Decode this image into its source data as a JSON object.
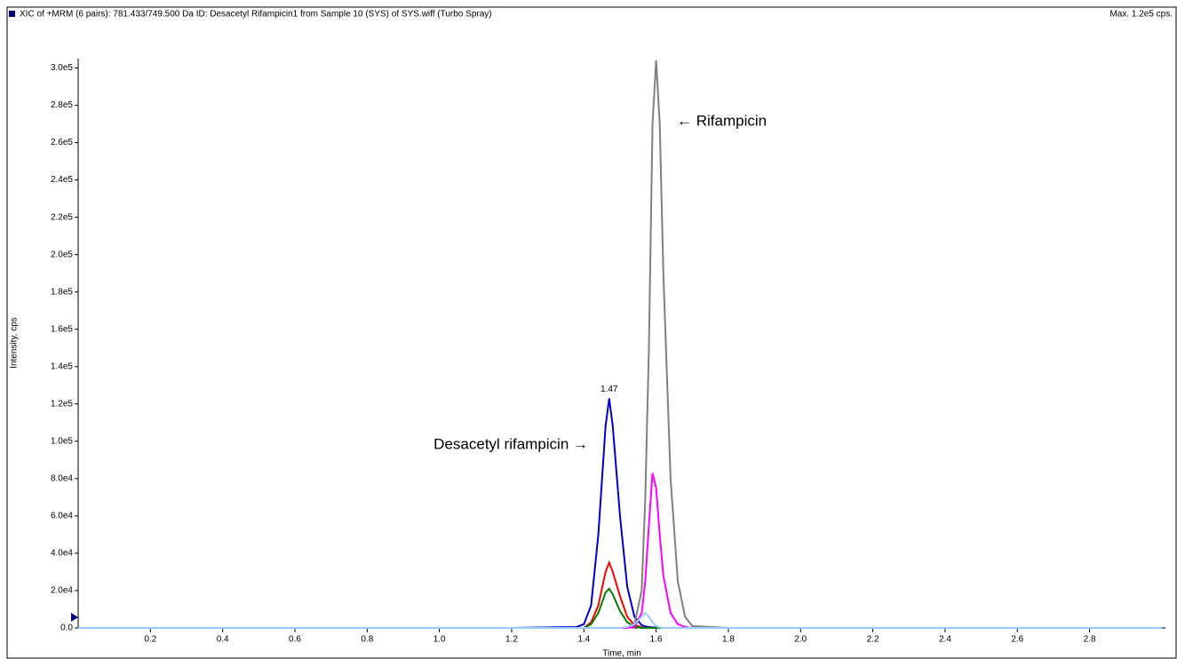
{
  "chart_data": {
    "type": "line",
    "title": "XIC of +MRM (6 pairs): 781.433/749.500 Da ID: Desacetyl Rifampicin1 from Sample 10 (SYS) of SYS.wiff (Turbo Spray)",
    "max_label": "Max. 1.2e5 cps.",
    "x_label": "Time, min",
    "y_label": "Intensity, cps",
    "peak_label": 1.47,
    "annotations": [
      "← Rifampicin",
      "Desacetyl rifampicin →"
    ],
    "x": [
      0,
      1.2,
      1.38,
      1.4,
      1.42,
      1.44,
      1.46,
      1.47,
      1.48,
      1.5,
      1.52,
      1.54,
      1.56,
      1.57,
      1.58,
      1.59,
      1.6,
      1.61,
      1.62,
      1.64,
      1.66,
      1.68,
      1.7,
      1.8,
      2.0,
      3.0
    ],
    "series": [
      {
        "color": "#0000cc",
        "values": [
          0,
          0,
          500,
          2000,
          12000,
          50000,
          108000,
          123000,
          108000,
          60000,
          22000,
          6000,
          1500,
          800,
          500,
          300,
          200,
          100,
          0,
          0,
          0,
          0,
          0,
          0,
          0,
          0
        ]
      },
      {
        "color": "#ff0000",
        "values": [
          0,
          0,
          0,
          0,
          3000,
          12000,
          30000,
          35000,
          30000,
          17000,
          6000,
          1500,
          300,
          0,
          0,
          0,
          0,
          0,
          0,
          0,
          0,
          0,
          0,
          0,
          0,
          0
        ]
      },
      {
        "color": "#008000",
        "values": [
          0,
          0,
          0,
          0,
          2000,
          8000,
          19000,
          21000,
          18000,
          9000,
          3000,
          800,
          0,
          0,
          0,
          0,
          0,
          0,
          0,
          0,
          0,
          0,
          0,
          0,
          0,
          0
        ]
      },
      {
        "color": "#808080",
        "values": [
          0,
          0,
          0,
          0,
          0,
          0,
          0,
          0,
          0,
          0,
          0,
          2000,
          20000,
          70000,
          150000,
          270000,
          304000,
          270000,
          190000,
          80000,
          25000,
          6000,
          1000,
          0,
          0,
          0
        ]
      },
      {
        "color": "#ff00ff",
        "values": [
          0,
          0,
          0,
          0,
          0,
          0,
          0,
          0,
          0,
          0,
          0,
          500,
          8000,
          25000,
          55000,
          83000,
          75000,
          50000,
          28000,
          8000,
          2000,
          500,
          0,
          0,
          0,
          0
        ]
      },
      {
        "color": "#99ccff",
        "values": [
          0,
          0,
          0,
          0,
          0,
          0,
          0,
          0,
          0,
          0,
          500,
          2000,
          6000,
          8000,
          6000,
          3000,
          1000,
          300,
          0,
          0,
          0,
          0,
          0,
          0,
          0,
          0
        ]
      }
    ],
    "xlim": [
      0,
      3.01
    ],
    "ylim": [
      0,
      305000
    ],
    "xticks": [
      0.2,
      0.4,
      0.6,
      0.8,
      {
        "value": 1,
        "label": "1.0"
      },
      1.2,
      1.4,
      1.6,
      1.8,
      {
        "value": 2,
        "label": "2.0"
      },
      2.2,
      2.4,
      2.6,
      2.8
    ],
    "yticks": [
      {
        "value": 0,
        "label": "0.0"
      },
      {
        "value": 20000,
        "label": "2.0e4"
      },
      {
        "value": 40000,
        "label": "4.0e4"
      },
      {
        "value": 60000,
        "label": "6.0e4"
      },
      {
        "value": 80000,
        "label": "8.0e4"
      },
      {
        "value": 100000,
        "label": "1.0e5"
      },
      {
        "value": 120000,
        "label": "1.2e5"
      },
      {
        "value": 140000,
        "label": "1.4e5"
      },
      {
        "value": 160000,
        "label": "1.6e5"
      },
      {
        "value": 180000,
        "label": "1.8e5"
      },
      {
        "value": 200000,
        "label": "2.0e5"
      },
      {
        "value": 220000,
        "label": "2.2e5"
      },
      {
        "value": 240000,
        "label": "2.4e5"
      },
      {
        "value": 260000,
        "label": "2.6e5"
      },
      {
        "value": 280000,
        "label": "2.8e5"
      },
      {
        "value": 300000,
        "label": "3.0e5"
      }
    ]
  }
}
